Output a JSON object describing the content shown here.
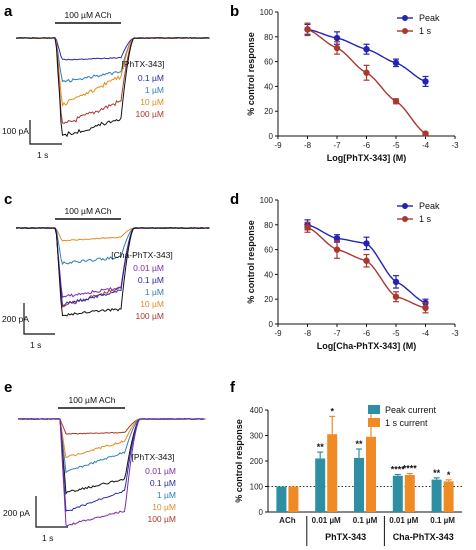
{
  "panels": [
    {
      "letter": "a",
      "type": "current-trace",
      "bar_label": "100 µM ACh",
      "legend_title": "[PhTX-343]",
      "concentrations": [
        "0.1 µM",
        "1 µM",
        "10 µM",
        "100 µM"
      ],
      "scale_current": "100 pA",
      "scale_time": "1 s"
    },
    {
      "letter": "c",
      "type": "current-trace",
      "bar_label": "100 µM ACh",
      "legend_title": "[Cha-PhTX-343]",
      "concentrations": [
        "0.01 µM",
        "0.1 µM",
        "1 µM",
        "10 µM",
        "100 µM"
      ],
      "scale_current": "200 pA",
      "scale_time": "1 s"
    },
    {
      "letter": "e",
      "type": "current-trace",
      "bar_label": "100 µM ACh",
      "legend_title": "[PhTX-343]",
      "concentrations": [
        "0.01 µM",
        "0.1 µM",
        "1 µM",
        "10 µM",
        "100 µM"
      ],
      "scale_current": "200 pA",
      "scale_time": "1 s"
    }
  ],
  "colors": {
    "peak": "#2424b4",
    "one_s": "#a8392e",
    "bar_peak": "#2e8fa3",
    "bar_one_s": "#f08a24",
    "trace_0_01": "#7a2da8",
    "trace_0_1": "#2a2aa8",
    "trace_1": "#2f7fb8",
    "trace_10": "#e88a1e",
    "trace_100": "#a83a2a",
    "control": "#111111"
  },
  "chart_data": [
    {
      "letter": "b",
      "type": "line",
      "xlabel": "Log[PhTX-343] (M)",
      "ylabel": "% control response",
      "xlim": [
        -9,
        -3
      ],
      "ylim": [
        0,
        100
      ],
      "xticks": [
        "-9",
        "-8",
        "-7",
        "-6",
        "-5",
        "-4",
        "-3"
      ],
      "yticks": [
        "0",
        "20",
        "40",
        "60",
        "80",
        "100"
      ],
      "legend": "top-right",
      "series": [
        {
          "name": "Peak",
          "x": [
            -8,
            -7,
            -6,
            -5,
            -4
          ],
          "y": [
            86,
            79,
            70,
            59,
            44
          ],
          "err": [
            4,
            5,
            4,
            3,
            4
          ]
        },
        {
          "name": "1 s",
          "x": [
            -8,
            -7,
            -6,
            -5,
            -4
          ],
          "y": [
            86,
            71,
            51,
            28,
            2
          ],
          "err": [
            5,
            5,
            6,
            2,
            1
          ]
        }
      ]
    },
    {
      "letter": "d",
      "type": "line",
      "xlabel": "Log[Cha-PhTX-343] (M)",
      "ylabel": "% control response",
      "xlim": [
        -9,
        -3
      ],
      "ylim": [
        0,
        100
      ],
      "xticks": [
        "-9",
        "-8",
        "-7",
        "-6",
        "-5",
        "-4",
        "-3"
      ],
      "yticks": [
        "0",
        "20",
        "40",
        "60",
        "80",
        "100"
      ],
      "legend": "top-right",
      "series": [
        {
          "name": "Peak",
          "x": [
            -8,
            -7,
            -6,
            -5,
            -4
          ],
          "y": [
            80,
            69,
            65,
            34,
            17
          ],
          "err": [
            4,
            3,
            5,
            5,
            3
          ]
        },
        {
          "name": "1 s",
          "x": [
            -8,
            -7,
            -6,
            -5,
            -4
          ],
          "y": [
            78,
            60,
            51,
            22,
            13
          ],
          "err": [
            4,
            7,
            5,
            4,
            4
          ]
        }
      ]
    },
    {
      "letter": "f",
      "type": "bar",
      "ylabel": "% control response",
      "ylim": [
        0,
        400
      ],
      "yticks": [
        "0",
        "100",
        "200",
        "300",
        "400"
      ],
      "categories": [
        "ACh",
        "0.01 µM",
        "0.1 µM",
        "0.01 µM",
        "0.1 µM"
      ],
      "groups": [
        {
          "label": "PhTX-343",
          "members": [
            1,
            2
          ]
        },
        {
          "label": "Cha-PhTX-343",
          "members": [
            3,
            4
          ]
        }
      ],
      "legend": "top-right",
      "series": [
        {
          "name": "Peak current",
          "values": [
            100,
            210,
            212,
            142,
            127
          ],
          "err": [
            0,
            25,
            35,
            5,
            7
          ],
          "sig": [
            "",
            "**",
            "**",
            "****",
            "**"
          ]
        },
        {
          "name": "1 s current",
          "values": [
            100,
            305,
            295,
            145,
            120
          ],
          "err": [
            0,
            70,
            95,
            6,
            6
          ],
          "sig": [
            "",
            "*",
            "",
            "****",
            "*"
          ]
        }
      ]
    }
  ]
}
